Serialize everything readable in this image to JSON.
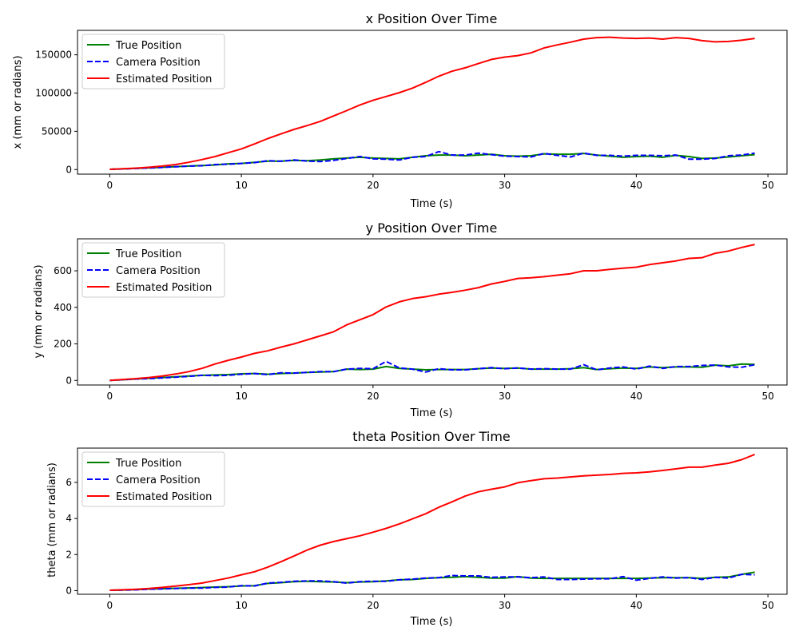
{
  "chart_data": [
    {
      "type": "line",
      "title": "x Position Over Time",
      "xlabel": "Time (s)",
      "ylabel": "x (mm or radians)",
      "xlim": [
        -2.45,
        51.45
      ],
      "ylim": [
        -6000,
        182000
      ],
      "xticks": [
        0,
        10,
        20,
        30,
        40,
        50
      ],
      "yticks": [
        0,
        50000,
        100000,
        150000
      ],
      "ytick_labels": [
        "0",
        "50000",
        "100000",
        "150000"
      ],
      "legend": "top-left",
      "x": [
        0,
        1,
        2,
        3,
        4,
        5,
        6,
        7,
        8,
        9,
        10,
        11,
        12,
        13,
        14,
        15,
        16,
        17,
        18,
        19,
        20,
        21,
        22,
        23,
        24,
        25,
        26,
        27,
        28,
        29,
        30,
        31,
        32,
        33,
        34,
        35,
        36,
        37,
        38,
        39,
        40,
        41,
        42,
        43,
        44,
        45,
        46,
        47,
        48,
        49
      ],
      "series": [
        {
          "name": "True Position",
          "color": "#008000",
          "style": "solid",
          "values": [
            300,
            900,
            1500,
            2200,
            3000,
            3800,
            4600,
            5200,
            6000,
            7500,
            8000,
            9500,
            11000,
            11000,
            12000,
            11500,
            12500,
            14000,
            15000,
            16000,
            15000,
            14500,
            14000,
            16000,
            18000,
            19000,
            19000,
            18000,
            19000,
            20000,
            18000,
            17500,
            18000,
            20500,
            20000,
            20000,
            21000,
            19000,
            17500,
            16000,
            17000,
            17500,
            16000,
            18500,
            17000,
            14500,
            15000,
            16500,
            18000,
            19500
          ]
        },
        {
          "name": "Camera Position",
          "color": "#0000ff",
          "style": "dashed",
          "values": [
            300,
            800,
            1400,
            2000,
            2800,
            3600,
            4400,
            5000,
            6500,
            7000,
            8000,
            9000,
            11500,
            10800,
            12500,
            11000,
            10500,
            12000,
            14500,
            17000,
            14000,
            13500,
            12500,
            16000,
            17000,
            23500,
            19000,
            19000,
            21500,
            19500,
            17500,
            17000,
            16500,
            21000,
            18500,
            16500,
            21500,
            18500,
            18500,
            17500,
            18500,
            18500,
            18000,
            19000,
            13500,
            13500,
            14500,
            18000,
            19000,
            21500
          ]
        },
        {
          "name": "Estimated Position",
          "color": "#ff0000",
          "style": "solid",
          "values": [
            300,
            1000,
            1800,
            3000,
            4500,
            6500,
            9500,
            13000,
            17000,
            22000,
            27000,
            33500,
            40500,
            46500,
            52500,
            57500,
            63000,
            70000,
            77000,
            84500,
            90500,
            95500,
            100500,
            106500,
            114000,
            122000,
            128500,
            133000,
            138500,
            144000,
            147000,
            149000,
            152500,
            159000,
            163000,
            166500,
            170500,
            172500,
            173000,
            172000,
            171500,
            172000,
            170500,
            172500,
            171500,
            168500,
            167000,
            167500,
            169000,
            171500
          ]
        }
      ]
    },
    {
      "type": "line",
      "title": "y Position Over Time",
      "xlabel": "Time (s)",
      "ylabel": "y (mm or radians)",
      "xlim": [
        -2.45,
        51.45
      ],
      "ylim": [
        -25,
        775
      ],
      "xticks": [
        0,
        10,
        20,
        30,
        40,
        50
      ],
      "yticks": [
        0,
        200,
        400,
        600
      ],
      "ytick_labels": [
        "0",
        "200",
        "400",
        "600"
      ],
      "legend": "top-left",
      "x": [
        0,
        1,
        2,
        3,
        4,
        5,
        6,
        7,
        8,
        9,
        10,
        11,
        12,
        13,
        14,
        15,
        16,
        17,
        18,
        19,
        20,
        21,
        22,
        23,
        24,
        25,
        26,
        27,
        28,
        29,
        30,
        31,
        32,
        33,
        34,
        35,
        36,
        37,
        38,
        39,
        40,
        41,
        42,
        43,
        44,
        45,
        46,
        47,
        48,
        49
      ],
      "series": [
        {
          "name": "True Position",
          "color": "#008000",
          "style": "solid",
          "values": [
            0,
            4,
            8,
            12,
            16,
            20,
            24,
            28,
            30,
            32,
            36,
            38,
            34,
            38,
            40,
            44,
            46,
            48,
            62,
            60,
            62,
            76,
            66,
            62,
            58,
            60,
            60,
            60,
            64,
            68,
            66,
            68,
            62,
            62,
            62,
            64,
            70,
            60,
            64,
            68,
            66,
            74,
            70,
            74,
            74,
            72,
            84,
            80,
            90,
            88
          ]
        },
        {
          "name": "Camera Position",
          "color": "#0000ff",
          "style": "dashed",
          "values": [
            0,
            4,
            8,
            10,
            14,
            18,
            22,
            28,
            26,
            28,
            34,
            38,
            32,
            42,
            40,
            44,
            48,
            48,
            62,
            66,
            64,
            104,
            68,
            62,
            46,
            64,
            58,
            58,
            64,
            70,
            64,
            68,
            62,
            64,
            62,
            62,
            86,
            58,
            68,
            74,
            62,
            78,
            66,
            76,
            76,
            82,
            84,
            74,
            72,
            86
          ]
        },
        {
          "name": "Estimated Position",
          "color": "#ff0000",
          "style": "solid",
          "values": [
            0,
            5,
            10,
            16,
            24,
            35,
            48,
            66,
            90,
            110,
            128,
            148,
            162,
            182,
            200,
            222,
            244,
            266,
            304,
            332,
            360,
            402,
            430,
            448,
            458,
            472,
            482,
            494,
            508,
            528,
            542,
            558,
            562,
            568,
            576,
            584,
            600,
            600,
            608,
            614,
            620,
            634,
            644,
            654,
            668,
            672,
            696,
            708,
            728,
            744
          ]
        }
      ]
    },
    {
      "type": "line",
      "title": "theta Position Over Time",
      "xlabel": "Time (s)",
      "ylabel": "theta (mm or radians)",
      "xlim": [
        -2.45,
        51.45
      ],
      "ylim": [
        -0.2,
        7.9
      ],
      "xticks": [
        0,
        10,
        20,
        30,
        40,
        50
      ],
      "yticks": [
        0,
        2,
        4,
        6
      ],
      "ytick_labels": [
        "0",
        "2",
        "4",
        "6"
      ],
      "legend": "top-left",
      "x": [
        0,
        1,
        2,
        3,
        4,
        5,
        6,
        7,
        8,
        9,
        10,
        11,
        12,
        13,
        14,
        15,
        16,
        17,
        18,
        19,
        20,
        21,
        22,
        23,
        24,
        25,
        26,
        27,
        28,
        29,
        30,
        31,
        32,
        33,
        34,
        35,
        36,
        37,
        38,
        39,
        40,
        41,
        42,
        43,
        44,
        45,
        46,
        47,
        48,
        49
      ],
      "series": [
        {
          "name": "True Position",
          "color": "#008000",
          "style": "solid",
          "values": [
            0.02,
            0.04,
            0.06,
            0.09,
            0.11,
            0.13,
            0.15,
            0.17,
            0.2,
            0.22,
            0.26,
            0.28,
            0.4,
            0.44,
            0.5,
            0.52,
            0.5,
            0.48,
            0.44,
            0.48,
            0.5,
            0.54,
            0.6,
            0.62,
            0.68,
            0.72,
            0.74,
            0.78,
            0.74,
            0.7,
            0.7,
            0.78,
            0.7,
            0.68,
            0.68,
            0.68,
            0.68,
            0.68,
            0.68,
            0.68,
            0.68,
            0.7,
            0.72,
            0.72,
            0.72,
            0.68,
            0.74,
            0.76,
            0.9,
            1.02
          ]
        },
        {
          "name": "Camera Position",
          "color": "#0000ff",
          "style": "dashed",
          "values": [
            0.02,
            0.03,
            0.05,
            0.08,
            0.1,
            0.12,
            0.14,
            0.14,
            0.18,
            0.2,
            0.28,
            0.26,
            0.42,
            0.46,
            0.52,
            0.54,
            0.54,
            0.5,
            0.42,
            0.5,
            0.52,
            0.52,
            0.6,
            0.64,
            0.7,
            0.72,
            0.84,
            0.82,
            0.82,
            0.74,
            0.76,
            0.76,
            0.72,
            0.76,
            0.62,
            0.62,
            0.64,
            0.66,
            0.66,
            0.78,
            0.58,
            0.68,
            0.76,
            0.7,
            0.72,
            0.62,
            0.74,
            0.7,
            0.9,
            0.88
          ]
        },
        {
          "name": "Estimated Position",
          "color": "#ff0000",
          "style": "solid",
          "values": [
            0.02,
            0.05,
            0.08,
            0.12,
            0.18,
            0.25,
            0.33,
            0.42,
            0.56,
            0.7,
            0.88,
            1.05,
            1.3,
            1.6,
            1.92,
            2.25,
            2.52,
            2.72,
            2.88,
            3.04,
            3.24,
            3.45,
            3.7,
            3.98,
            4.26,
            4.62,
            4.92,
            5.24,
            5.48,
            5.62,
            5.75,
            5.98,
            6.1,
            6.2,
            6.24,
            6.3,
            6.36,
            6.4,
            6.44,
            6.5,
            6.53,
            6.58,
            6.66,
            6.75,
            6.84,
            6.84,
            6.96,
            7.06,
            7.26,
            7.55
          ]
        }
      ]
    }
  ]
}
